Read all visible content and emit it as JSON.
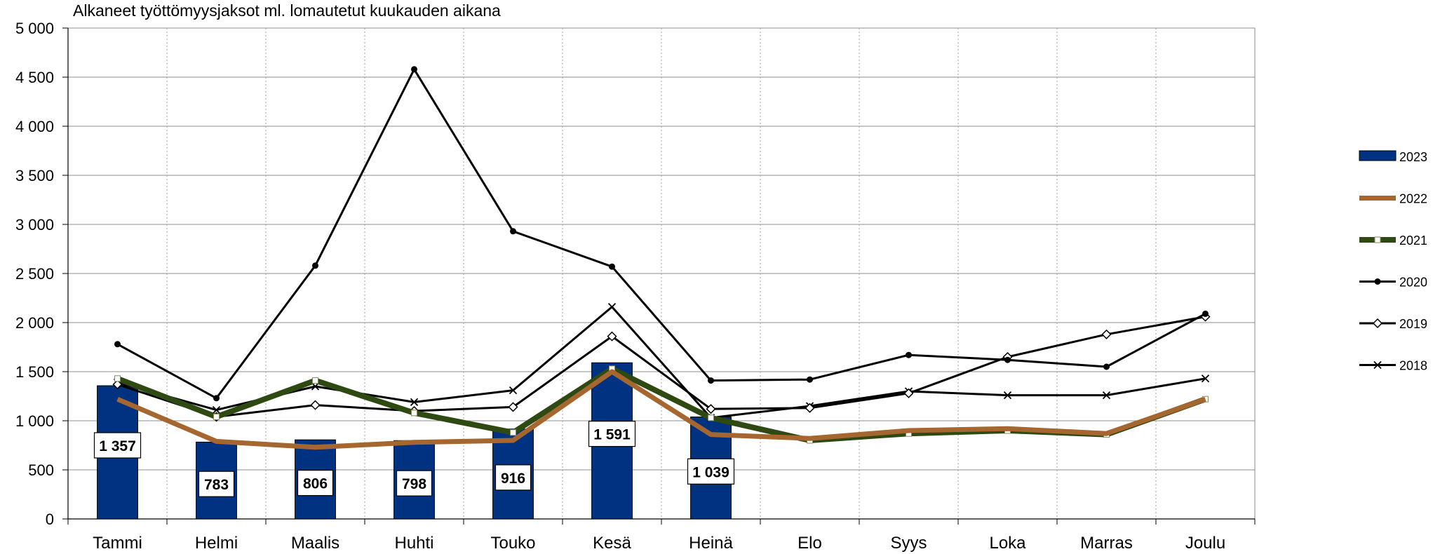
{
  "chart_data": {
    "type": "bar",
    "title": "Alkaneet työttömyysjaksot ml. lomautetut kuukauden aikana",
    "categories": [
      "Tammi",
      "Helmi",
      "Maalis",
      "Huhti",
      "Touko",
      "Kesä",
      "Heinä",
      "Elo",
      "Syys",
      "Loka",
      "Marras",
      "Joulu"
    ],
    "ylim": [
      0,
      5000
    ],
    "y_ticks": [
      0,
      500,
      1000,
      1500,
      2000,
      2500,
      3000,
      3500,
      4000,
      4500,
      5000
    ],
    "y_tick_labels": [
      "0",
      "500",
      "1 000",
      "1 500",
      "2 000",
      "2 500",
      "3 000",
      "3 500",
      "4 000",
      "4 500",
      "5 000"
    ],
    "grid": true,
    "legend_position": "right",
    "series": [
      {
        "name": "2023",
        "kind": "bar",
        "color": "#003282",
        "values": [
          1357,
          783,
          806,
          798,
          916,
          1591,
          1039,
          null,
          null,
          null,
          null,
          null
        ],
        "data_labels": [
          "1 357",
          "783",
          "806",
          "798",
          "916",
          "1 591",
          "1 039"
        ]
      },
      {
        "name": "2022",
        "kind": "line",
        "color": "#A5662F",
        "marker": "none",
        "values": [
          1220,
          790,
          730,
          780,
          800,
          1500,
          860,
          820,
          900,
          920,
          870,
          1220
        ]
      },
      {
        "name": "2021",
        "kind": "line",
        "color": "#2E4A12",
        "marker": "square",
        "values": [
          1430,
          1040,
          1410,
          1080,
          880,
          1530,
          1030,
          800,
          870,
          900,
          860,
          1220
        ]
      },
      {
        "name": "2020",
        "kind": "line",
        "color": "#000000",
        "marker": "dot",
        "values": [
          1780,
          1230,
          2580,
          4580,
          2930,
          2570,
          1410,
          1420,
          1670,
          1620,
          1550,
          2090
        ]
      },
      {
        "name": "2019",
        "kind": "line",
        "color": "#000000",
        "marker": "diamond",
        "values": [
          1370,
          1040,
          1160,
          1100,
          1140,
          1860,
          1120,
          1130,
          1280,
          1650,
          1880,
          2060
        ]
      },
      {
        "name": "2018",
        "kind": "line",
        "color": "#000000",
        "marker": "x",
        "values": [
          1390,
          1110,
          1350,
          1190,
          1310,
          2160,
          1030,
          1150,
          1300,
          1260,
          1260,
          1430
        ]
      }
    ]
  }
}
